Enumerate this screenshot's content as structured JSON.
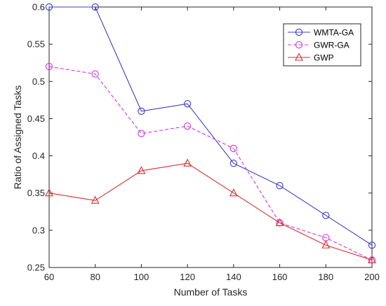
{
  "chart_data": {
    "type": "line",
    "xlabel": "Number of Tasks",
    "ylabel": "Ratio of Assigned Tasks",
    "x": [
      60,
      80,
      100,
      120,
      140,
      160,
      180,
      200
    ],
    "xlim": [
      60,
      200
    ],
    "ylim": [
      0.25,
      0.6
    ],
    "xticks": [
      "60",
      "80",
      "100",
      "120",
      "140",
      "160",
      "180",
      "200"
    ],
    "yticks": [
      "0.25",
      "0.3",
      "0.35",
      "0.4",
      "0.45",
      "0.5",
      "0.55",
      "0.6"
    ],
    "grid": false,
    "legend_position": "top-right",
    "series": [
      {
        "name": "WMTA-GA",
        "values": [
          0.6,
          0.6,
          0.46,
          0.47,
          0.39,
          0.36,
          0.32,
          0.28
        ],
        "color": "#3b3bc9",
        "line": "solid",
        "marker": "circle"
      },
      {
        "name": "GWR-GA",
        "values": [
          0.52,
          0.51,
          0.43,
          0.44,
          0.41,
          0.31,
          0.29,
          0.26
        ],
        "color": "#d633e0",
        "line": "dashed",
        "marker": "circle"
      },
      {
        "name": "GWP",
        "values": [
          0.35,
          0.34,
          0.38,
          0.39,
          0.35,
          0.31,
          0.28,
          0.26
        ],
        "color": "#d92e2e",
        "line": "solid",
        "marker": "triangle"
      }
    ]
  }
}
